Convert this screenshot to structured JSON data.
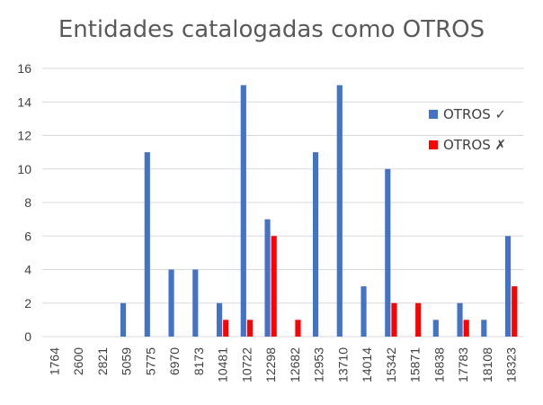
{
  "chart_data": {
    "type": "bar",
    "title": "Entidades catalogadas como OTROS",
    "categories": [
      "1764",
      "2600",
      "2821",
      "5059",
      "5775",
      "6970",
      "8173",
      "10481",
      "10722",
      "12298",
      "12682",
      "12953",
      "13710",
      "14014",
      "15342",
      "15871",
      "16838",
      "17783",
      "18108",
      "18323"
    ],
    "series": [
      {
        "name": "OTROS ✓",
        "color": "#4472C4",
        "values": [
          0,
          0,
          0,
          2,
          11,
          4,
          4,
          2,
          15,
          7,
          0,
          11,
          15,
          3,
          10,
          0,
          1,
          2,
          1,
          6
        ]
      },
      {
        "name": "OTROS ✗",
        "color": "#FF0000",
        "values": [
          0,
          0,
          0,
          0,
          0,
          0,
          0,
          1,
          1,
          6,
          1,
          0,
          0,
          0,
          2,
          2,
          0,
          1,
          0,
          3
        ]
      }
    ],
    "ylim": [
      0,
      16
    ],
    "yticks": [
      0,
      2,
      4,
      6,
      8,
      10,
      12,
      14,
      16
    ],
    "grid": true,
    "legend_position": "right",
    "xlabel": "",
    "ylabel": ""
  }
}
